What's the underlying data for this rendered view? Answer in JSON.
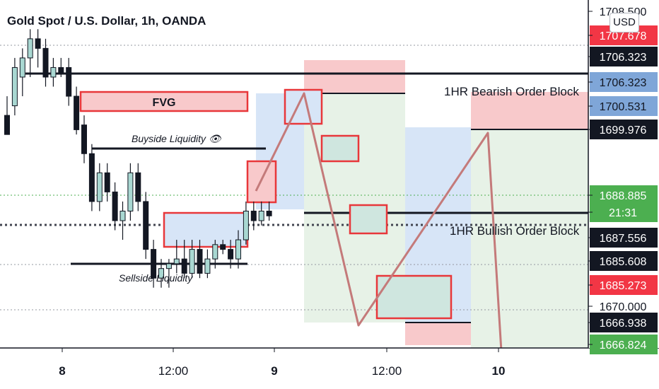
{
  "header": {
    "title": "Gold Spot / U.S. Dollar, 1h, OANDA",
    "currency_button": "USD"
  },
  "chart_data": {
    "type": "candlestick",
    "title": "Gold Spot / U.S. Dollar, 1h, OANDA",
    "x_tick_labels": [
      "8",
      "12:00",
      "9",
      "12:00",
      "10"
    ],
    "y_axis_labels": [
      {
        "value": "1708.500",
        "style": "plain"
      },
      {
        "value": "1707.678",
        "style": "red"
      },
      {
        "value": "1706.323",
        "style": "black"
      },
      {
        "value": "1706.323",
        "style": "blue"
      },
      {
        "value": "1700.531",
        "style": "blue"
      },
      {
        "value": "1699.976",
        "style": "black"
      },
      {
        "value": "1688.885",
        "style": "green"
      },
      {
        "value": "21:31",
        "style": "green"
      },
      {
        "value": "1687.556",
        "style": "black"
      },
      {
        "value": "1685.608",
        "style": "black"
      },
      {
        "value": "1685.273",
        "style": "red"
      },
      {
        "value": "1670.000",
        "style": "plain"
      },
      {
        "value": "1666.938",
        "style": "black"
      },
      {
        "value": "1666.824",
        "style": "green"
      }
    ],
    "annotations": {
      "fvg": "FVG",
      "buyside": "Buyside Liquidity 👁",
      "sellside": "Sellside Liquidity",
      "bearish_ob": "1HR Bearish Order Block",
      "bullish_ob": "1HR Bullish Order Block"
    },
    "candles": [
      {
        "o": 1699,
        "h": 1701,
        "l": 1697,
        "c": 1697
      },
      {
        "o": 1700,
        "h": 1705,
        "l": 1699,
        "c": 1704
      },
      {
        "o": 1703,
        "h": 1706,
        "l": 1701,
        "c": 1705
      },
      {
        "o": 1705,
        "h": 1708,
        "l": 1703,
        "c": 1707
      },
      {
        "o": 1707,
        "h": 1708,
        "l": 1704,
        "c": 1706
      },
      {
        "o": 1706,
        "h": 1707,
        "l": 1702,
        "c": 1703
      },
      {
        "o": 1703,
        "h": 1705,
        "l": 1702,
        "c": 1704
      },
      {
        "o": 1704,
        "h": 1705,
        "l": 1703,
        "c": 1703.5
      },
      {
        "o": 1704,
        "h": 1705,
        "l": 1700,
        "c": 1701
      },
      {
        "o": 1701,
        "h": 1702,
        "l": 1697,
        "c": 1697.5
      },
      {
        "o": 1698,
        "h": 1699,
        "l": 1694,
        "c": 1695
      },
      {
        "o": 1695,
        "h": 1696,
        "l": 1689,
        "c": 1690
      },
      {
        "o": 1690,
        "h": 1694,
        "l": 1689,
        "c": 1693
      },
      {
        "o": 1693,
        "h": 1694,
        "l": 1690,
        "c": 1691
      },
      {
        "o": 1691,
        "h": 1692,
        "l": 1687,
        "c": 1688
      },
      {
        "o": 1688,
        "h": 1690,
        "l": 1686,
        "c": 1689
      },
      {
        "o": 1689,
        "h": 1694,
        "l": 1688,
        "c": 1693
      },
      {
        "o": 1693,
        "h": 1694,
        "l": 1689,
        "c": 1690
      },
      {
        "o": 1690,
        "h": 1691,
        "l": 1684,
        "c": 1685
      },
      {
        "o": 1685,
        "h": 1686,
        "l": 1681,
        "c": 1682
      },
      {
        "o": 1682,
        "h": 1684,
        "l": 1681,
        "c": 1683
      },
      {
        "o": 1683,
        "h": 1684,
        "l": 1681,
        "c": 1683.5
      },
      {
        "o": 1683.5,
        "h": 1686,
        "l": 1682.5,
        "c": 1684
      },
      {
        "o": 1684,
        "h": 1686,
        "l": 1682,
        "c": 1682.5
      },
      {
        "o": 1682.5,
        "h": 1686,
        "l": 1682,
        "c": 1685
      },
      {
        "o": 1685,
        "h": 1686,
        "l": 1682,
        "c": 1682.5
      },
      {
        "o": 1682.5,
        "h": 1685,
        "l": 1682,
        "c": 1684
      },
      {
        "o": 1684,
        "h": 1686,
        "l": 1683,
        "c": 1685.5
      },
      {
        "o": 1685.5,
        "h": 1686,
        "l": 1684.5,
        "c": 1685
      },
      {
        "o": 1685,
        "h": 1686,
        "l": 1683,
        "c": 1684
      },
      {
        "o": 1684,
        "h": 1687,
        "l": 1683,
        "c": 1686
      },
      {
        "o": 1686,
        "h": 1690,
        "l": 1685.5,
        "c": 1689
      },
      {
        "o": 1689,
        "h": 1690,
        "l": 1687,
        "c": 1688
      },
      {
        "o": 1688,
        "h": 1690,
        "l": 1687.5,
        "c": 1689
      },
      {
        "o": 1689,
        "h": 1690,
        "l": 1688,
        "c": 1688.5
      }
    ],
    "colors": {
      "up": "#a9d8d2",
      "down": "#131722",
      "red_box": "#e8373a",
      "red_fill": "#f8c9cb",
      "blue_fill": "#d7e5f7",
      "green_fill": "#e7f2e7",
      "path": "#c47a7a"
    }
  }
}
